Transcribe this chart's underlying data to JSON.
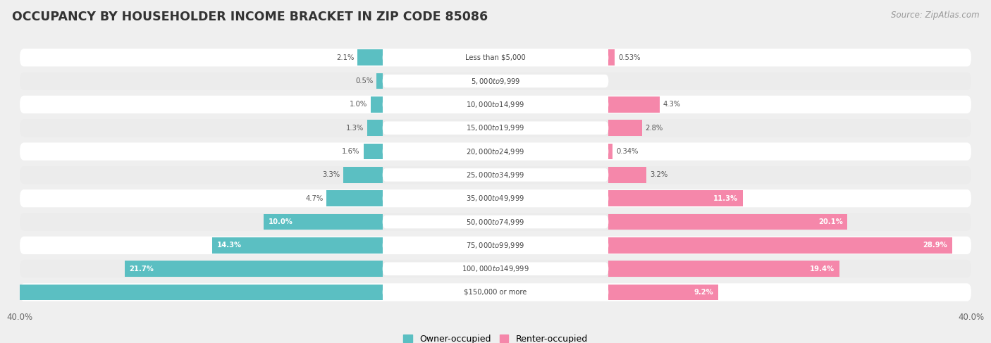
{
  "title": "OCCUPANCY BY HOUSEHOLDER INCOME BRACKET IN ZIP CODE 85086",
  "source": "Source: ZipAtlas.com",
  "categories": [
    "Less than $5,000",
    "$5,000 to $9,999",
    "$10,000 to $14,999",
    "$15,000 to $19,999",
    "$20,000 to $24,999",
    "$25,000 to $34,999",
    "$35,000 to $49,999",
    "$50,000 to $74,999",
    "$75,000 to $99,999",
    "$100,000 to $149,999",
    "$150,000 or more"
  ],
  "owner_values": [
    2.1,
    0.5,
    1.0,
    1.3,
    1.6,
    3.3,
    4.7,
    10.0,
    14.3,
    21.7,
    39.6
  ],
  "renter_values": [
    0.53,
    0.0,
    4.3,
    2.8,
    0.34,
    3.2,
    11.3,
    20.1,
    28.9,
    19.4,
    9.2
  ],
  "owner_color": "#5bbfc2",
  "renter_color": "#f587aa",
  "owner_label": "Owner-occupied",
  "renter_label": "Renter-occupied",
  "xlim": [
    -40,
    40
  ],
  "background_color": "#efefef",
  "title_fontsize": 12.5,
  "source_fontsize": 8.5,
  "bar_height": 0.68
}
